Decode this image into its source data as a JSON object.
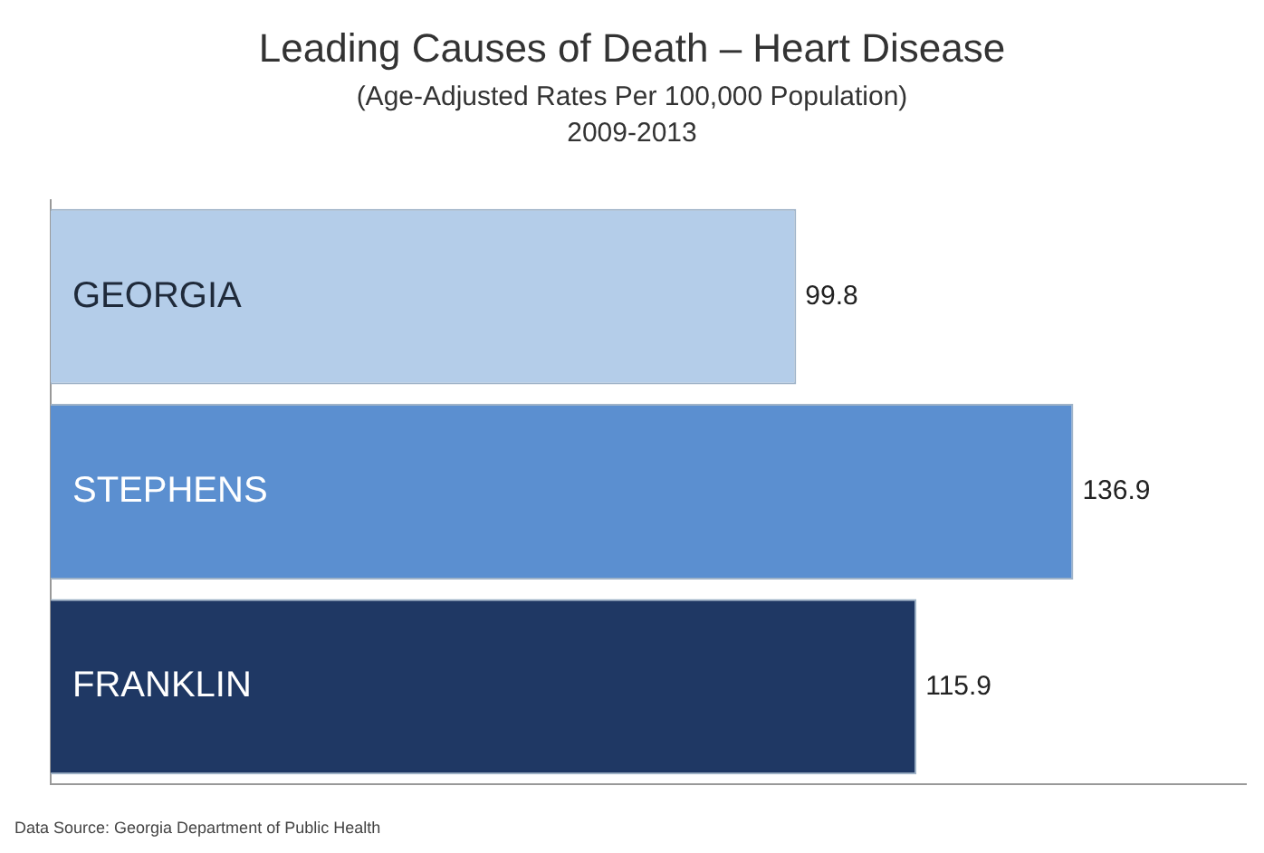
{
  "chart_data": {
    "type": "bar",
    "orientation": "horizontal",
    "title": "Leading Causes of Death – Heart Disease",
    "subtitle": "(Age-Adjusted Rates Per 100,000 Population)\n2009-2013",
    "categories": [
      "GEORGIA",
      "STEPHENS",
      "FRANKLIN"
    ],
    "values": [
      99.8,
      136.9,
      115.9
    ],
    "colors": [
      "#b4cde9",
      "#5b8fd0",
      "#1f3864"
    ],
    "data_labels": true,
    "grid": false,
    "legend": false,
    "annotations": [
      "Data Source: Georgia Department of Public Health"
    ]
  }
}
